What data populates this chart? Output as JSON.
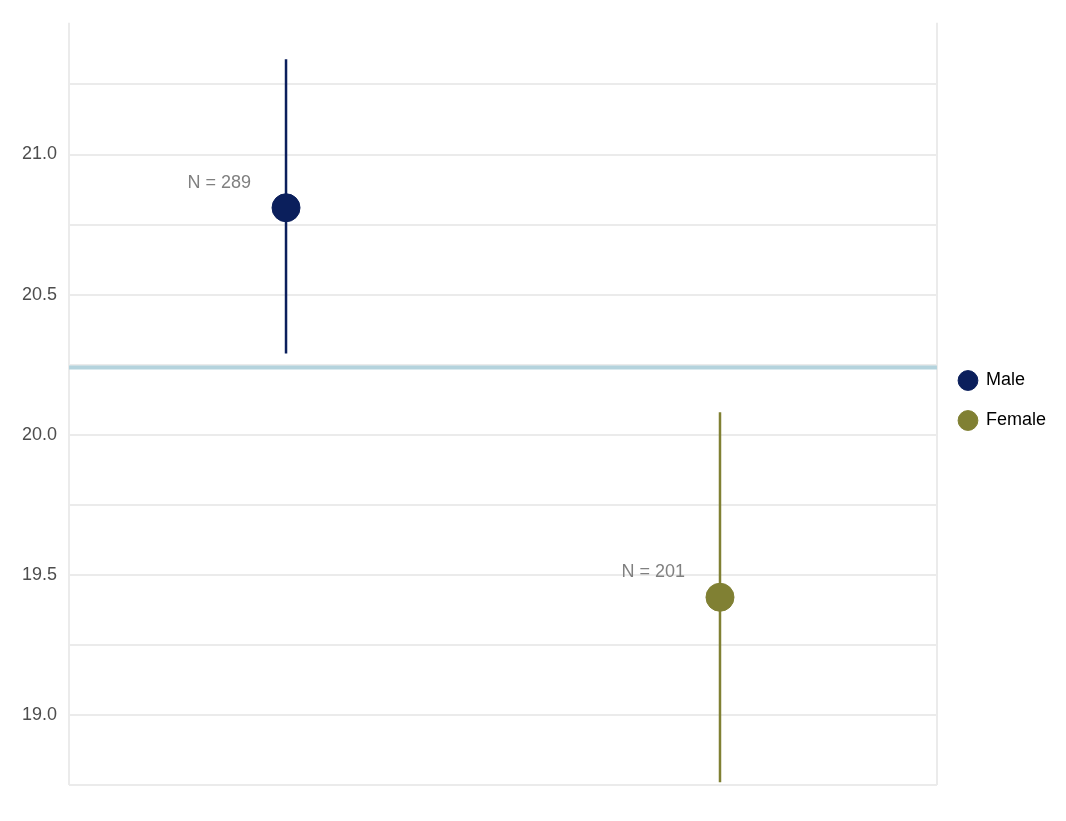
{
  "chart_data": {
    "type": "scatter",
    "categories": [
      null,
      null
    ],
    "series": [
      {
        "name": "Male",
        "color": "#0b1f5c",
        "values": [
          20.81,
          null
        ],
        "errors": [
          [
            20.29,
            21.34
          ],
          null
        ]
      },
      {
        "name": "Female",
        "color": "#808033",
        "values": [
          null,
          19.42
        ],
        "errors": [
          null,
          [
            18.76,
            20.08
          ]
        ]
      }
    ],
    "annotations": [
      "N = 289",
      "N = 201"
    ],
    "ylim": [
      18.75,
      21.47
    ],
    "yticks": [
      {
        "value": 18.75,
        "label": null
      },
      {
        "value": 19,
        "label": "19.0"
      },
      {
        "value": 19.25,
        "label": null
      },
      {
        "value": 19.5,
        "label": "19.5"
      },
      {
        "value": 19.75,
        "label": null
      },
      {
        "value": 20,
        "label": "20.0"
      },
      {
        "value": 20.25,
        "label": null
      },
      {
        "value": 20.5,
        "label": "20.5"
      },
      {
        "value": 20.75,
        "label": null
      },
      {
        "value": 21,
        "label": "21.0"
      },
      {
        "value": 21.25,
        "label": null
      }
    ],
    "ref_lines": [
      {
        "axis": "y",
        "value": 20.24,
        "color": "#b4d3dd"
      }
    ],
    "grid": true,
    "legend": "right",
    "marker": "circle",
    "tick_labels": "y"
  }
}
